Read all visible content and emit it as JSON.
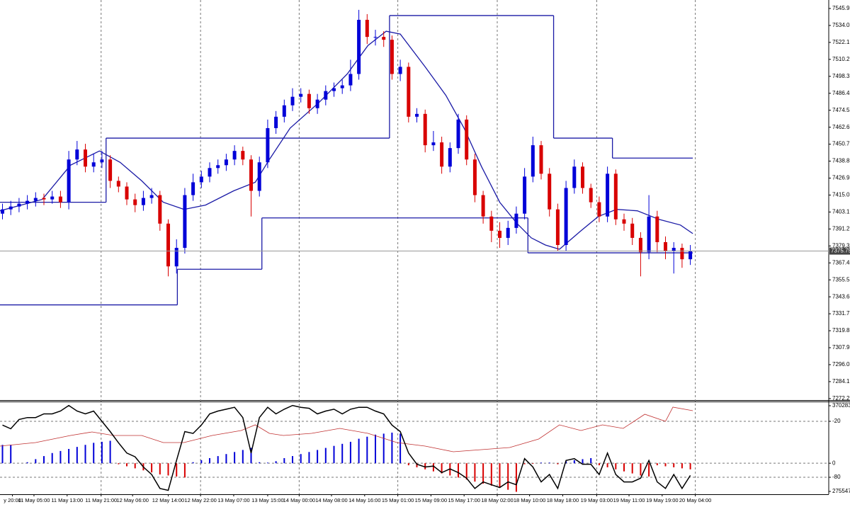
{
  "chart_data": [
    {
      "type": "candlestick",
      "up_color": "#0000d8",
      "down_color": "#d80000",
      "open": [
        7402,
        7405,
        7407,
        7409,
        7411,
        7413,
        7412,
        7414,
        7410,
        7440,
        7447,
        7435,
        7438,
        7440,
        7425,
        7421,
        7412,
        7408,
        7413,
        7415,
        7395,
        7365,
        7378,
        7415,
        7424,
        7428,
        7434,
        7436,
        7440,
        7446,
        7440,
        7418,
        7438,
        7462,
        7470,
        7478,
        7484,
        7486,
        7476,
        7482,
        7488,
        7490,
        7492,
        7500,
        7538,
        7526,
        7526,
        7524,
        7500,
        7505,
        7470,
        7472,
        7450,
        7452,
        7435,
        7448,
        7468,
        7440,
        7415,
        7400,
        7390,
        7385,
        7392,
        7402,
        7428,
        7450,
        7430,
        7405,
        7380,
        7420,
        7435,
        7420,
        7410,
        7400,
        7430,
        7398,
        7395,
        7385,
        7375,
        7400,
        7382,
        7376,
        7378,
        7370
      ],
      "high": [
        7409,
        7411,
        7413,
        7415,
        7417,
        7416,
        7418,
        7418,
        7446,
        7453,
        7451,
        7444,
        7446,
        7443,
        7428,
        7424,
        7416,
        7418,
        7420,
        7418,
        7398,
        7384,
        7420,
        7430,
        7432,
        7438,
        7440,
        7444,
        7450,
        7449,
        7443,
        7442,
        7468,
        7474,
        7482,
        7490,
        7490,
        7489,
        7486,
        7492,
        7494,
        7496,
        7510,
        7545,
        7542,
        7531,
        7530,
        7527,
        7510,
        7508,
        7476,
        7475,
        7460,
        7456,
        7452,
        7472,
        7471,
        7444,
        7418,
        7404,
        7396,
        7397,
        7407,
        7434,
        7456,
        7453,
        7434,
        7409,
        7425,
        7440,
        7438,
        7423,
        7414,
        7435,
        7433,
        7402,
        7399,
        7389,
        7415,
        7404,
        7386,
        7382,
        7381,
        7380
      ],
      "low": [
        7398,
        7401,
        7403,
        7405,
        7407,
        7408,
        7409,
        7406,
        7405,
        7436,
        7431,
        7431,
        7434,
        7420,
        7417,
        7408,
        7403,
        7404,
        7409,
        7390,
        7358,
        7360,
        7374,
        7411,
        7420,
        7424,
        7430,
        7432,
        7436,
        7436,
        7400,
        7414,
        7434,
        7458,
        7466,
        7474,
        7480,
        7472,
        7472,
        7478,
        7484,
        7486,
        7488,
        7496,
        7521,
        7520,
        7519,
        7496,
        7495,
        7466,
        7466,
        7445,
        7446,
        7430,
        7431,
        7444,
        7436,
        7410,
        7395,
        7382,
        7378,
        7380,
        7388,
        7398,
        7424,
        7426,
        7400,
        7376,
        7376,
        7416,
        7416,
        7406,
        7396,
        7396,
        7394,
        7390,
        7380,
        7358,
        7370,
        7375,
        7370,
        7360,
        7364,
        7366
      ],
      "close": [
        7405,
        7407,
        7409,
        7411,
        7413,
        7412,
        7414,
        7410,
        7440,
        7447,
        7435,
        7438,
        7440,
        7425,
        7421,
        7412,
        7408,
        7413,
        7415,
        7395,
        7365,
        7378,
        7415,
        7424,
        7428,
        7434,
        7436,
        7440,
        7446,
        7440,
        7418,
        7438,
        7462,
        7470,
        7478,
        7484,
        7486,
        7476,
        7482,
        7488,
        7490,
        7492,
        7500,
        7538,
        7526,
        7526,
        7524,
        7500,
        7505,
        7470,
        7472,
        7450,
        7452,
        7435,
        7448,
        7468,
        7440,
        7415,
        7400,
        7390,
        7385,
        7392,
        7402,
        7428,
        7450,
        7430,
        7405,
        7380,
        7420,
        7435,
        7420,
        7410,
        7400,
        7430,
        7398,
        7395,
        7385,
        7375,
        7400,
        7382,
        7376,
        7378,
        7370,
        7376
      ],
      "lines": [
        {
          "style": "step",
          "color": "#1a1aa6",
          "x": [
            -0.3,
            12.5,
            46.7,
            66.5,
            73.6,
            83.3
          ],
          "values": [
            7410,
            7455,
            7541,
            7455,
            7441,
            7441
          ]
        },
        {
          "style": "step",
          "color": "#1a1aa6",
          "x": [
            -0.3,
            21.1,
            31.3,
            63.4,
            83.3
          ],
          "values": [
            7338,
            7363,
            7399,
            7374.5,
            7374.5
          ]
        },
        {
          "style": "line",
          "color": "#1a1aa6",
          "x": [
            -0.3,
            4.8,
            8.2,
            11.7,
            14.2,
            16.8,
            19.4,
            21.9,
            24.5,
            27.9,
            30.5,
            32.2,
            34.7,
            38.2,
            41.6,
            44.1,
            46.3,
            48.0,
            51.0,
            53.5,
            55.7,
            57.8,
            60.0,
            62.1,
            63.8,
            65.5,
            67.2,
            69.8,
            71.9,
            74.1,
            76.6,
            79.2,
            81.8,
            83.3
          ],
          "values": [
            7404,
            7412,
            7436,
            7446,
            7438,
            7425,
            7410,
            7405,
            7408,
            7418,
            7424,
            7440,
            7462,
            7480,
            7500,
            7520,
            7530,
            7528,
            7505,
            7485,
            7462,
            7435,
            7410,
            7395,
            7385,
            7380,
            7377,
            7390,
            7400,
            7405,
            7404,
            7398,
            7394,
            7388
          ]
        }
      ],
      "current_price": 7375.75,
      "xlim": [
        -0.3,
        99.7
      ],
      "xticks": [
        {
          "value": 1.2,
          "label": "y 20:00"
        },
        {
          "value": 3.8,
          "label": "11 May 05:00"
        },
        {
          "value": 7.8,
          "label": "11 May 13:00"
        },
        {
          "value": 11.9,
          "label": "11 May 21:00"
        },
        {
          "value": 15.7,
          "label": "12 May 06:00"
        },
        {
          "value": 20.0,
          "label": "12 May 14:00"
        },
        {
          "value": 23.9,
          "label": "12 May 22:00"
        },
        {
          "value": 27.9,
          "label": "13 May 07:00"
        },
        {
          "value": 32.0,
          "label": "13 May 15:00"
        },
        {
          "value": 35.8,
          "label": "14 May 00:00"
        },
        {
          "value": 39.7,
          "label": "14 May 08:00"
        },
        {
          "value": 43.7,
          "label": "14 May 16:00"
        },
        {
          "value": 47.7,
          "label": "15 May 01:00"
        },
        {
          "value": 51.7,
          "label": "15 May 09:00"
        },
        {
          "value": 55.7,
          "label": "15 May 17:00"
        },
        {
          "value": 59.7,
          "label": "18 May 02:00"
        },
        {
          "value": 63.6,
          "label": "18 May 10:00"
        },
        {
          "value": 67.6,
          "label": "18 May 18:00"
        },
        {
          "value": 71.7,
          "label": "19 May 03:00"
        },
        {
          "value": 75.6,
          "label": "19 May 11:00"
        },
        {
          "value": 79.6,
          "label": "19 May 19:00"
        },
        {
          "value": 83.6,
          "label": "20 May 04:00"
        }
      ],
      "ylim": [
        7270.7,
        7551.9
      ],
      "yticks": [
        7545.95,
        7534.05,
        7522.15,
        7510.25,
        7498.35,
        7486.45,
        7474.55,
        7462.65,
        7450.75,
        7438.85,
        7426.95,
        7415.05,
        7403.15,
        7391.25,
        7379.35,
        7367.45,
        7355.55,
        7343.65,
        7331.75,
        7319.85,
        7307.95,
        7296.05,
        7284.15,
        7272.25
      ]
    },
    {
      "type": "oscillator",
      "series": [
        {
          "style": "histogram",
          "axis": "y2",
          "up_color": "#0000d8",
          "down_color": "#d80000",
          "values": [
            0.9,
            0.9,
            0,
            0.05,
            0.2,
            0.35,
            0.5,
            0.6,
            0.7,
            0.8,
            0.9,
            1.0,
            1.05,
            1.1,
            -0.05,
            -0.15,
            -0.25,
            -0.35,
            -0.45,
            -0.55,
            -0.6,
            -0.65,
            -0.7,
            0.05,
            0.15,
            0.25,
            0.35,
            0.45,
            0.55,
            0.65,
            0.75,
            0.05,
            0.03,
            0.1,
            0.25,
            0.35,
            0.45,
            0.55,
            0.65,
            0.75,
            0.85,
            0.95,
            1.05,
            1.2,
            1.3,
            1.4,
            1.45,
            1.5,
            1.45,
            -0.1,
            -0.2,
            -0.3,
            -0.4,
            -0.5,
            -0.6,
            -0.7,
            -0.8,
            -0.9,
            -1.0,
            -1.1,
            -1.2,
            -1.3,
            -1.4,
            -0.05,
            -0.03,
            0.03,
            0.03,
            -0.05,
            0.1,
            0.15,
            0.2,
            0.25,
            -0.1,
            -0.2,
            -0.3,
            -0.4,
            -0.5,
            -0.6,
            -0.65,
            -0.1,
            -0.15,
            -0.2,
            -0.25,
            -0.3
          ]
        },
        {
          "style": "line",
          "axis": "y3",
          "color": "#c03030",
          "x": [
            -0.3,
            4.0,
            8.2,
            10.8,
            13.4,
            16.8,
            19.4,
            21.9,
            25.3,
            28.8,
            30.5,
            32.2,
            33.9,
            37.3,
            40.7,
            44.1,
            47.6,
            51.0,
            54.4,
            57.8,
            61.2,
            64.7,
            67.2,
            69.8,
            72.4,
            74.9,
            77.5,
            80.0,
            80.9,
            83.3
          ],
          "values": [
            325652,
            329567,
            337397,
            341312,
            337397,
            337397,
            329567,
            329567,
            337397,
            342878,
            349142,
            339746,
            337397,
            339746,
            345227,
            339746,
            329567,
            325652,
            319388,
            321737,
            324086,
            333482,
            349142,
            342878,
            349142,
            345227,
            360887,
            353057,
            368717,
            364802
          ]
        },
        {
          "style": "line",
          "color": "#000000",
          "values": [
            -24,
            -28,
            -18,
            -16,
            -16,
            -12,
            -12,
            -9,
            -3,
            -9,
            -12,
            -9,
            -20,
            -31,
            -43,
            -54,
            -58,
            -69,
            -77,
            -92,
            -94,
            -62,
            -31,
            -33,
            -24,
            -12,
            -9,
            -7,
            -5,
            -16,
            -54,
            -16,
            -5,
            -12,
            -7,
            -3,
            -5,
            -6,
            -12,
            -9,
            -7,
            -12,
            -7,
            -5,
            -5,
            -9,
            -12,
            -24,
            -31,
            -54,
            -66,
            -69,
            -68,
            -75,
            -71,
            -75,
            -81,
            -92,
            -85,
            -88,
            -91,
            -85,
            -88,
            -60,
            -69,
            -85,
            -77,
            -92,
            -62,
            -60,
            -66,
            -66,
            -77,
            -54,
            -77,
            -85,
            -85,
            -81,
            -62,
            -85,
            -92,
            -77,
            -92,
            -78
          ]
        }
      ],
      "ylim": [
        -98.2,
        0.5
      ],
      "yticks": [
        -20,
        -80
      ],
      "y2lim": [
        -1.52,
        2.99
      ],
      "y2ticks": [
        0
      ],
      "y3lim": [
        272408,
        374198
      ],
      "y3ticks": [
        370283,
        275547
      ]
    }
  ]
}
